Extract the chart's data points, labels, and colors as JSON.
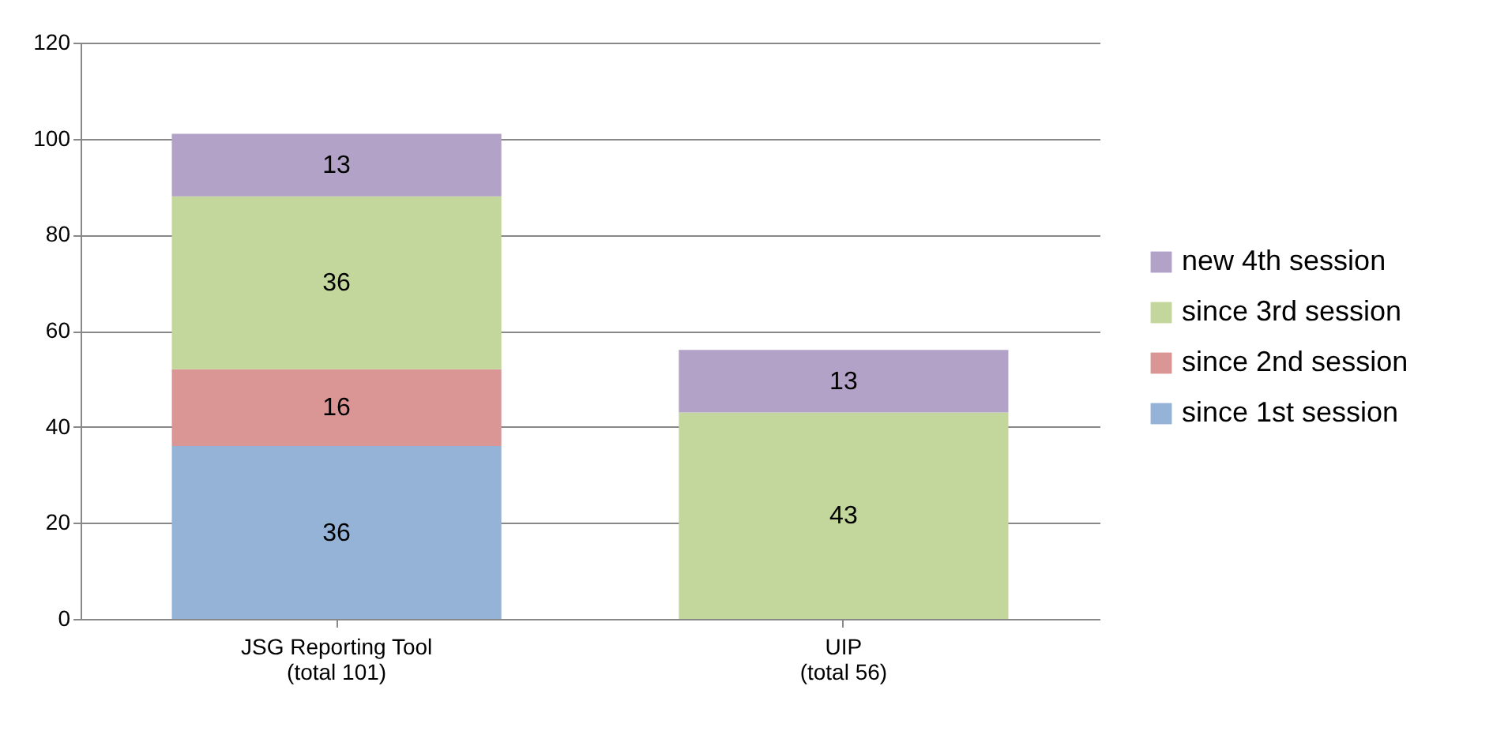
{
  "chart_data": {
    "type": "bar",
    "stacked": true,
    "categories": [
      "JSG Reporting Tool\n(total 101)",
      "UIP\n(total 56)"
    ],
    "series": [
      {
        "name": "since 1st session",
        "color": "#95b3d7",
        "values": [
          36,
          null
        ]
      },
      {
        "name": "since 2nd session",
        "color": "#d99694",
        "values": [
          16,
          null
        ]
      },
      {
        "name": "since 3rd session",
        "color": "#c3d69b",
        "values": [
          36,
          43
        ]
      },
      {
        "name": "new 4th session",
        "color": "#b3a2c7",
        "values": [
          13,
          13
        ]
      }
    ],
    "ylim": [
      0,
      120
    ],
    "yticks": [
      0,
      20,
      40,
      60,
      80,
      100,
      120
    ],
    "grid": "y",
    "legend": "right",
    "data_labels": true
  }
}
